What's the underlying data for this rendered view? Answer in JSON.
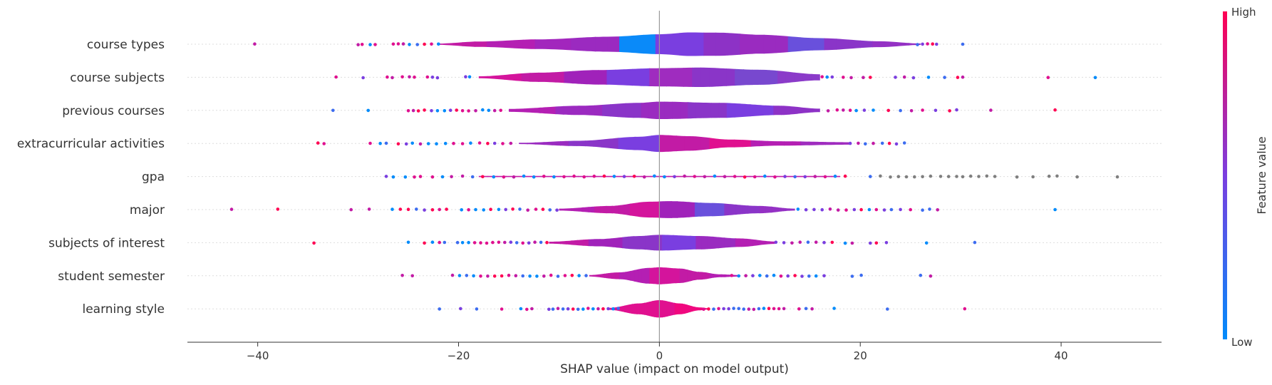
{
  "chart_data": {
    "type": "violin",
    "title": "",
    "xlabel": "SHAP value (impact on model output)",
    "ylabel": "",
    "xlim": [
      -47,
      50
    ],
    "x_ticks": [
      -40,
      -20,
      0,
      20,
      40
    ],
    "x_tick_labels": [
      "−40",
      "−20",
      "0",
      "20",
      "40"
    ],
    "grid": false,
    "colorbar": {
      "label": "Feature value",
      "high_label": "High",
      "low_label": "Low",
      "high_color": "#ff0052",
      "low_color": "#008bfb"
    },
    "features": [
      {
        "name": "course types",
        "range": [
          -40.3,
          30.2
        ],
        "outliers": [
          -40.3,
          -30.0,
          -29.6,
          -28.8,
          -28.3,
          -26.5,
          -26.0,
          -25.5,
          -24.9,
          -24.1,
          -23.4,
          -22.7,
          -22.0,
          25.7,
          26.2,
          26.7,
          27.2,
          27.6,
          30.2
        ],
        "density": [
          [
            -22,
            0.05
          ],
          [
            -18,
            0.22
          ],
          [
            -12,
            0.4
          ],
          [
            -5,
            0.62
          ],
          [
            0,
            0.82
          ],
          [
            3,
            0.97
          ],
          [
            6,
            0.95
          ],
          [
            10,
            0.78
          ],
          [
            16,
            0.5
          ],
          [
            22,
            0.24
          ],
          [
            26,
            0.06
          ]
        ],
        "color_profile": [
          "#c21ba5",
          "#b41fb3",
          "#a226bd",
          "#9b2ac0",
          "#0a8af9",
          "#7a3ee0",
          "#8d32c6",
          "#9a2bc0",
          "#6950dc",
          "#8a35c8",
          "#9431c4"
        ]
      },
      {
        "name": "course subjects",
        "range": [
          -32.2,
          43.4
        ],
        "outliers": [
          -32.2,
          -29.5,
          -27.1,
          -26.6,
          -25.6,
          -24.9,
          -24.4,
          -23.1,
          -22.6,
          -22.1,
          -19.3,
          -18.9,
          16.2,
          16.7,
          17.2,
          18.3,
          19.1,
          20.3,
          21.0,
          23.5,
          24.4,
          25.3,
          26.8,
          28.4,
          29.7,
          30.2,
          38.7,
          43.4
        ],
        "density": [
          [
            -18,
            0.08
          ],
          [
            -12,
            0.38
          ],
          [
            -6,
            0.6
          ],
          [
            0,
            0.75
          ],
          [
            4,
            0.8
          ],
          [
            10,
            0.62
          ],
          [
            16,
            0.25
          ]
        ],
        "color_profile": [
          "#d4149c",
          "#c21ba5",
          "#a022ba",
          "#7a3ee0",
          "#9f2cbf",
          "#8a35c8",
          "#7848cf",
          "#8b3bc9"
        ]
      },
      {
        "name": "previous courses",
        "range": [
          -32.5,
          39.4
        ],
        "outliers": [
          -32.5,
          -29.0,
          -25.0,
          -24.5,
          -24.0,
          -23.4,
          -22.7,
          -22.1,
          -21.4,
          -20.8,
          -20.2,
          -19.6,
          -19.0,
          -18.3,
          -17.6,
          -17.0,
          -16.4,
          -15.8,
          16.8,
          17.7,
          18.3,
          19.0,
          19.6,
          20.4,
          21.3,
          22.8,
          24.0,
          25.1,
          26.2,
          27.5,
          28.9,
          29.6,
          33.0,
          39.4
        ],
        "density": [
          [
            -15,
            0.12
          ],
          [
            -8,
            0.38
          ],
          [
            -2,
            0.62
          ],
          [
            0,
            0.72
          ],
          [
            6,
            0.62
          ],
          [
            12,
            0.38
          ],
          [
            16,
            0.14
          ]
        ],
        "color_profile": [
          "#b41fb3",
          "#9b2ac0",
          "#8a35c8",
          "#9a2bc0",
          "#8a35c8",
          "#7a3ee0",
          "#8d32c6"
        ]
      },
      {
        "name": "extracurricular activities",
        "range": [
          -34.0,
          24.4
        ],
        "outliers": [
          -34.0,
          -33.4,
          -28.8,
          -27.8,
          -27.2,
          -26.0,
          -25.2,
          -24.6,
          -23.8,
          -23.0,
          -22.2,
          -21.3,
          -20.5,
          -19.6,
          -18.8,
          -17.9,
          -17.1,
          -16.4,
          -15.6,
          -14.8,
          19.0,
          19.8,
          20.5,
          21.3,
          22.2,
          22.9,
          23.6,
          24.4
        ],
        "density": [
          [
            -14,
            0.05
          ],
          [
            -8,
            0.22
          ],
          [
            -2,
            0.55
          ],
          [
            0,
            0.7
          ],
          [
            3,
            0.6
          ],
          [
            7,
            0.32
          ],
          [
            12,
            0.18
          ],
          [
            19,
            0.1
          ]
        ],
        "color_profile": [
          "#9a2bc0",
          "#8a35c8",
          "#7a3ee0",
          "#c21ba5",
          "#e0108f",
          "#b41fb3",
          "#9f2cbf"
        ]
      },
      {
        "name": "gpa",
        "range": [
          -27.2,
          45.6
        ],
        "outliers": [
          -27.2,
          -26.5,
          -25.3,
          -24.4,
          -23.8,
          -22.6,
          -21.6,
          -20.7,
          -19.6,
          -18.6,
          -17.6,
          -16.5,
          -15.5,
          -14.5,
          -13.5,
          -12.5,
          -11.5,
          -10.5,
          -9.5,
          -8.5,
          -7.5,
          -6.5,
          -5.5,
          -4.5,
          -3.5,
          -2.5,
          -1.5,
          -0.5,
          0.5,
          1.5,
          2.5,
          3.5,
          4.5,
          5.5,
          6.5,
          7.5,
          8.5,
          9.5,
          10.5,
          11.5,
          12.5,
          13.5,
          14.5,
          15.5,
          16.5,
          17.5,
          18.5,
          21.0,
          22.0,
          23.0,
          23.8,
          24.6,
          25.4,
          26.2,
          27.0,
          28.0,
          28.8,
          29.6,
          30.2,
          31.0,
          31.8,
          32.6,
          33.4,
          35.6,
          37.2,
          38.8,
          39.6,
          41.6,
          45.6
        ],
        "density": [
          [
            -18,
            0.05
          ],
          [
            18,
            0.05
          ]
        ],
        "color_profile": [
          "#c21ba5",
          "#c21ba5"
        ]
      },
      {
        "name": "major",
        "range": [
          -42.6,
          39.4
        ],
        "outliers": [
          -42.6,
          -38.0,
          -30.7,
          -28.9,
          -26.6,
          -25.8,
          -25.0,
          -24.2,
          -23.4,
          -22.6,
          -21.9,
          -21.2,
          -19.7,
          -19.0,
          -18.3,
          -17.5,
          -16.8,
          -16.0,
          -15.3,
          -14.6,
          -13.9,
          -13.1,
          -12.3,
          -11.6,
          -10.9,
          -10.2,
          13.8,
          14.6,
          15.4,
          16.2,
          17.0,
          17.8,
          18.6,
          19.4,
          20.1,
          20.9,
          21.6,
          22.4,
          23.1,
          24.0,
          25.0,
          26.2,
          26.9,
          27.7,
          39.4
        ],
        "density": [
          [
            -10,
            0.08
          ],
          [
            -5,
            0.3
          ],
          [
            -1,
            0.65
          ],
          [
            1,
            0.7
          ],
          [
            5,
            0.55
          ],
          [
            10,
            0.3
          ],
          [
            13.5,
            0.08
          ]
        ],
        "color_profile": [
          "#b41fb3",
          "#c21ba5",
          "#d4149c",
          "#a022ba",
          "#6950dc",
          "#8a35c8",
          "#9431c4"
        ]
      },
      {
        "name": "subjects of interest",
        "range": [
          -34.4,
          31.4
        ],
        "outliers": [
          -34.4,
          -25.0,
          -23.4,
          -22.6,
          -21.9,
          -21.4,
          -20.1,
          -19.6,
          -19.0,
          -18.4,
          -17.8,
          -17.2,
          -16.6,
          -16.0,
          -15.4,
          -14.8,
          -14.2,
          -13.6,
          -13.0,
          -12.4,
          -11.8,
          -11.2,
          11.6,
          12.4,
          13.2,
          14.0,
          14.8,
          15.6,
          16.4,
          17.2,
          18.5,
          19.2,
          21.0,
          21.6,
          22.6,
          26.6,
          31.4
        ],
        "density": [
          [
            -11,
            0.08
          ],
          [
            -6,
            0.3
          ],
          [
            -2,
            0.55
          ],
          [
            0,
            0.65
          ],
          [
            4,
            0.55
          ],
          [
            8,
            0.35
          ],
          [
            11.5,
            0.1
          ]
        ],
        "color_profile": [
          "#c21ba5",
          "#a022ba",
          "#8a35c8",
          "#7a3ee0",
          "#9a2bc0",
          "#b41fb3"
        ]
      },
      {
        "name": "student semester",
        "range": [
          -25.6,
          27.0
        ],
        "outliers": [
          -25.6,
          -24.6,
          -20.6,
          -19.9,
          -19.2,
          -18.5,
          -17.8,
          -17.1,
          -16.4,
          -15.7,
          -15.0,
          -14.3,
          -13.6,
          -12.9,
          -12.2,
          -11.5,
          -10.8,
          -10.1,
          -9.4,
          -8.7,
          -8.0,
          -7.3,
          7.2,
          7.9,
          8.6,
          9.3,
          10.0,
          10.7,
          11.4,
          12.1,
          12.8,
          13.5,
          14.2,
          14.9,
          15.6,
          16.4,
          19.2,
          20.1,
          26.0,
          27.0
        ],
        "density": [
          [
            -7,
            0.06
          ],
          [
            -4,
            0.28
          ],
          [
            -1,
            0.65
          ],
          [
            0,
            0.7
          ],
          [
            2,
            0.6
          ],
          [
            4,
            0.32
          ],
          [
            6,
            0.12
          ],
          [
            8,
            0.06
          ]
        ],
        "color_profile": [
          "#c21ba5",
          "#b41fb3",
          "#d4149c",
          "#c21ba5",
          "#b41fb3"
        ]
      },
      {
        "name": "learning style",
        "range": [
          -21.9,
          30.4
        ],
        "outliers": [
          -21.9,
          -19.8,
          -18.2,
          -15.7,
          -13.8,
          -13.2,
          -12.7,
          -11.0,
          -10.6,
          -10.1,
          -9.6,
          -9.1,
          -8.6,
          -8.1,
          -7.6,
          -7.1,
          -6.6,
          -6.1,
          -5.6,
          -5.1,
          -4.6,
          -4.1,
          4.4,
          4.9,
          5.4,
          5.9,
          6.4,
          6.9,
          7.4,
          7.9,
          8.4,
          8.9,
          9.4,
          9.9,
          10.4,
          10.9,
          11.4,
          11.9,
          12.4,
          13.9,
          14.6,
          15.2,
          17.4,
          22.7,
          30.4
        ],
        "density": [
          [
            -5,
            0.08
          ],
          [
            -2,
            0.45
          ],
          [
            0,
            0.72
          ],
          [
            2,
            0.45
          ],
          [
            4,
            0.12
          ],
          [
            5,
            0.04
          ]
        ],
        "color_profile": [
          "#e0108f",
          "#e0108f",
          "#f0087f"
        ]
      }
    ]
  }
}
